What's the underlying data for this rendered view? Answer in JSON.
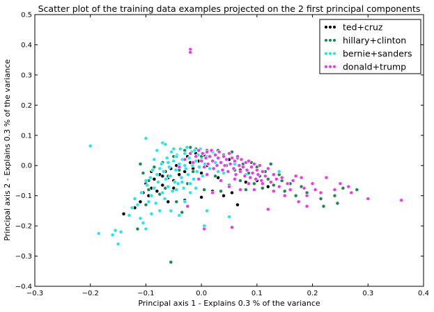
{
  "chart_data": {
    "type": "scatter",
    "title": "Scatter plot of the training data examples projected on the 2 first principal components",
    "xlabel": "Principal axis 1 - Explains 0.3 % of the variance",
    "ylabel": "Principal axis 2 - Explains 0.3 % of the variance",
    "xlim": [
      -0.3,
      0.4
    ],
    "ylim": [
      -0.4,
      0.5
    ],
    "xticks": [
      "−0.3",
      "−0.2",
      "−0.1",
      "0.0",
      "0.1",
      "0.2",
      "0.3",
      "0.4"
    ],
    "yticks": [
      "−0.4",
      "−0.3",
      "−0.2",
      "−0.1",
      "0.0",
      "0.1",
      "0.2",
      "0.3",
      "0.4",
      "0.5"
    ],
    "xtick_values": [
      -0.3,
      -0.2,
      -0.1,
      0.0,
      0.1,
      0.2,
      0.3,
      0.4
    ],
    "ytick_values": [
      -0.4,
      -0.3,
      -0.2,
      -0.1,
      0.0,
      0.1,
      0.2,
      0.3,
      0.4,
      0.5
    ],
    "legend_position": "top-right",
    "series": [
      {
        "name": "ted+cruz",
        "color": "#000000",
        "points": [
          [
            -0.14,
            -0.16
          ],
          [
            -0.13,
            -0.165
          ],
          [
            -0.12,
            -0.14
          ],
          [
            -0.11,
            -0.12
          ],
          [
            -0.105,
            -0.09
          ],
          [
            -0.1,
            -0.06
          ],
          [
            -0.095,
            -0.1
          ],
          [
            -0.09,
            -0.075
          ],
          [
            -0.085,
            -0.045
          ],
          [
            -0.08,
            -0.085
          ],
          [
            -0.075,
            -0.03
          ],
          [
            -0.07,
            -0.065
          ],
          [
            -0.065,
            -0.02
          ],
          [
            -0.06,
            -0.04
          ],
          [
            -0.055,
            -0.01
          ],
          [
            -0.05,
            -0.05
          ],
          [
            -0.045,
            0.0
          ],
          [
            -0.04,
            -0.03
          ],
          [
            -0.035,
            0.02
          ],
          [
            -0.03,
            -0.02
          ],
          [
            -0.025,
            0.03
          ],
          [
            -0.02,
            0.01
          ],
          [
            -0.015,
            -0.01
          ],
          [
            -0.01,
            0.04
          ],
          [
            -0.005,
            0.015
          ],
          [
            0.0,
            -0.025
          ],
          [
            0.005,
            0.035
          ],
          [
            0.01,
            0.0
          ],
          [
            0.02,
            0.045
          ],
          [
            0.03,
            -0.04
          ],
          [
            0.04,
            -0.1
          ],
          [
            0.055,
            -0.09
          ],
          [
            0.065,
            -0.13
          ],
          [
            0.08,
            -0.055
          ],
          [
            0.1,
            -0.05
          ],
          [
            0.12,
            -0.07
          ],
          [
            -0.06,
            -0.12
          ],
          [
            -0.03,
            -0.115
          ],
          [
            0.0,
            -0.105
          ],
          [
            0.02,
            -0.085
          ],
          [
            -0.09,
            -0.02
          ],
          [
            -0.07,
            -0.035
          ],
          [
            -0.05,
            -0.075
          ],
          [
            0.05,
            0.02
          ],
          [
            0.07,
            -0.015
          ]
        ]
      },
      {
        "name": "hillary+clinton",
        "color": "#1b8a4f",
        "points": [
          [
            -0.115,
            -0.21
          ],
          [
            -0.11,
            0.005
          ],
          [
            -0.105,
            -0.025
          ],
          [
            -0.1,
            -0.13
          ],
          [
            -0.095,
            -0.08
          ],
          [
            -0.085,
            -0.005
          ],
          [
            -0.075,
            -0.095
          ],
          [
            -0.07,
            0.01
          ],
          [
            -0.06,
            -0.035
          ],
          [
            -0.055,
            -0.32
          ],
          [
            -0.05,
            0.03
          ],
          [
            -0.045,
            -0.12
          ],
          [
            -0.04,
            -0.015
          ],
          [
            -0.035,
            -0.155
          ],
          [
            -0.03,
            0.05
          ],
          [
            -0.025,
            -0.06
          ],
          [
            -0.02,
            0.06
          ],
          [
            -0.015,
            -0.02
          ],
          [
            -0.01,
            0.055
          ],
          [
            0.0,
            0.03
          ],
          [
            0.005,
            -0.08
          ],
          [
            0.01,
            0.05
          ],
          [
            0.02,
            0.015
          ],
          [
            0.025,
            -0.035
          ],
          [
            0.03,
            0.05
          ],
          [
            0.035,
            -0.085
          ],
          [
            0.04,
            0.035
          ],
          [
            0.045,
            0.0
          ],
          [
            0.05,
            -0.065
          ],
          [
            0.055,
            0.045
          ],
          [
            0.06,
            -0.015
          ],
          [
            0.065,
            0.025
          ],
          [
            0.07,
            -0.05
          ],
          [
            0.075,
            0.005
          ],
          [
            0.08,
            -0.08
          ],
          [
            0.085,
            -0.025
          ],
          [
            0.09,
            0.01
          ],
          [
            0.095,
            -0.06
          ],
          [
            0.1,
            -0.005
          ],
          [
            0.105,
            -0.035
          ],
          [
            0.11,
            -0.075
          ],
          [
            0.115,
            -0.02
          ],
          [
            0.12,
            -0.045
          ],
          [
            0.125,
            0.005
          ],
          [
            0.13,
            -0.065
          ],
          [
            0.14,
            -0.03
          ],
          [
            0.145,
            -0.05
          ],
          [
            0.15,
            -0.085
          ],
          [
            0.16,
            -0.06
          ],
          [
            0.17,
            -0.1
          ],
          [
            0.18,
            -0.07
          ],
          [
            0.19,
            -0.09
          ],
          [
            0.215,
            -0.11
          ],
          [
            0.22,
            -0.135
          ],
          [
            0.24,
            -0.1
          ],
          [
            0.245,
            -0.125
          ],
          [
            0.255,
            -0.075
          ],
          [
            0.28,
            -0.08
          ],
          [
            -0.095,
            -0.05
          ],
          [
            -0.065,
            -0.075
          ]
        ]
      },
      {
        "name": "bernie+sanders",
        "color": "#22e5f0",
        "points": [
          [
            -0.2,
            0.065
          ],
          [
            -0.185,
            -0.225
          ],
          [
            -0.16,
            -0.23
          ],
          [
            -0.155,
            -0.215
          ],
          [
            -0.15,
            -0.26
          ],
          [
            -0.145,
            -0.22
          ],
          [
            -0.13,
            -0.165
          ],
          [
            -0.125,
            -0.14
          ],
          [
            -0.12,
            -0.11
          ],
          [
            -0.115,
            -0.13
          ],
          [
            -0.11,
            -0.175
          ],
          [
            -0.108,
            -0.09
          ],
          [
            -0.105,
            -0.19
          ],
          [
            -0.1,
            -0.21
          ],
          [
            -0.1,
            0.09
          ],
          [
            -0.098,
            -0.065
          ],
          [
            -0.095,
            -0.12
          ],
          [
            -0.092,
            -0.04
          ],
          [
            -0.09,
            -0.1
          ],
          [
            -0.088,
            -0.015
          ],
          [
            -0.085,
            -0.075
          ],
          [
            -0.082,
            -0.125
          ],
          [
            -0.08,
            -0.03
          ],
          [
            -0.078,
            -0.055
          ],
          [
            -0.075,
            -0.15
          ],
          [
            -0.072,
            0.005
          ],
          [
            -0.07,
            -0.09
          ],
          [
            -0.068,
            -0.02
          ],
          [
            -0.066,
            -0.11
          ],
          [
            -0.064,
            -0.045
          ],
          [
            -0.062,
            0.025
          ],
          [
            -0.06,
            -0.07
          ],
          [
            -0.058,
            -0.005
          ],
          [
            -0.056,
            -0.035
          ],
          [
            -0.054,
            0.045
          ],
          [
            -0.052,
            -0.085
          ],
          [
            -0.05,
            0.015
          ],
          [
            -0.048,
            -0.055
          ],
          [
            -0.046,
            -0.015
          ],
          [
            -0.044,
            0.035
          ],
          [
            -0.042,
            -0.06
          ],
          [
            -0.04,
            0.005
          ],
          [
            -0.038,
            0.055
          ],
          [
            -0.036,
            -0.04
          ],
          [
            -0.034,
            0.02
          ],
          [
            -0.032,
            -0.075
          ],
          [
            -0.03,
            0.04
          ],
          [
            -0.028,
            -0.01
          ],
          [
            -0.026,
            0.06
          ],
          [
            -0.024,
            -0.03
          ],
          [
            -0.022,
            0.025
          ],
          [
            -0.02,
            -0.06
          ],
          [
            -0.018,
            0.045
          ],
          [
            -0.016,
            0.0
          ],
          [
            -0.014,
            -0.045
          ],
          [
            -0.012,
            0.05
          ],
          [
            -0.01,
            0.015
          ],
          [
            -0.008,
            -0.02
          ],
          [
            -0.006,
            0.035
          ],
          [
            -0.004,
            -0.005
          ],
          [
            -0.002,
            0.055
          ],
          [
            0.0,
            0.02
          ],
          [
            0.002,
            -0.035
          ],
          [
            0.004,
            0.04
          ],
          [
            0.006,
            0.005
          ],
          [
            0.01,
            0.03
          ],
          [
            0.015,
            -0.01
          ],
          [
            0.02,
            0.045
          ],
          [
            0.025,
            0.01
          ],
          [
            0.03,
            -0.02
          ],
          [
            -0.07,
            0.075
          ],
          [
            -0.055,
            -0.15
          ],
          [
            -0.04,
            -0.165
          ],
          [
            -0.03,
            -0.12
          ],
          [
            -0.02,
            -0.09
          ],
          [
            -0.01,
            -0.075
          ],
          [
            0.01,
            -0.15
          ],
          [
            0.05,
            -0.17
          ],
          [
            0.005,
            -0.2
          ],
          [
            -0.065,
            0.07
          ],
          [
            -0.08,
            0.05
          ],
          [
            -0.05,
            0.055
          ],
          [
            -0.045,
            -0.08
          ],
          [
            -0.035,
            -0.055
          ],
          [
            -0.09,
            -0.16
          ],
          [
            0.14,
            -0.02
          ],
          [
            0.08,
            -0.03
          ],
          [
            0.06,
            0.005
          ],
          [
            0.04,
            -0.025
          ],
          [
            -0.1,
            -0.05
          ],
          [
            -0.085,
            0.02
          ],
          [
            -0.075,
            -0.01
          ],
          [
            -0.06,
            0.01
          ],
          [
            -0.045,
            0.03
          ],
          [
            -0.03,
            0.0
          ]
        ]
      },
      {
        "name": "donald+trump",
        "color": "#ea3ce6",
        "points": [
          [
            -0.02,
            0.385
          ],
          [
            -0.02,
            0.375
          ],
          [
            -0.04,
            -0.005
          ],
          [
            -0.03,
            0.02
          ],
          [
            -0.02,
            0.04
          ],
          [
            -0.015,
            0.01
          ],
          [
            -0.01,
            0.03
          ],
          [
            -0.005,
            0.05
          ],
          [
            0.0,
            0.015
          ],
          [
            0.002,
            0.04
          ],
          [
            0.005,
            -0.005
          ],
          [
            0.008,
            0.025
          ],
          [
            0.01,
            0.045
          ],
          [
            0.012,
            0.005
          ],
          [
            0.015,
            0.03
          ],
          [
            0.018,
            0.05
          ],
          [
            0.02,
            0.015
          ],
          [
            0.022,
            -0.01
          ],
          [
            0.025,
            0.035
          ],
          [
            0.028,
            0.0
          ],
          [
            0.03,
            0.025
          ],
          [
            0.032,
            0.045
          ],
          [
            0.035,
            0.01
          ],
          [
            0.038,
            -0.015
          ],
          [
            0.04,
            0.03
          ],
          [
            0.042,
            0.0
          ],
          [
            0.045,
            0.02
          ],
          [
            0.048,
            -0.02
          ],
          [
            0.05,
            0.04
          ],
          [
            0.052,
            0.005
          ],
          [
            0.055,
            0.025
          ],
          [
            0.058,
            -0.01
          ],
          [
            0.06,
            0.015
          ],
          [
            0.062,
            -0.03
          ],
          [
            0.065,
            0.03
          ],
          [
            0.068,
            0.0
          ],
          [
            0.07,
            -0.02
          ],
          [
            0.072,
            0.02
          ],
          [
            0.075,
            -0.005
          ],
          [
            0.078,
            -0.035
          ],
          [
            0.08,
            0.01
          ],
          [
            0.082,
            -0.015
          ],
          [
            0.085,
            0.015
          ],
          [
            0.088,
            -0.04
          ],
          [
            0.09,
            -0.005
          ],
          [
            0.092,
            -0.025
          ],
          [
            0.095,
            0.005
          ],
          [
            0.098,
            -0.045
          ],
          [
            0.1,
            -0.015
          ],
          [
            0.102,
            -0.03
          ],
          [
            0.105,
            0.0
          ],
          [
            0.108,
            -0.05
          ],
          [
            0.11,
            -0.02
          ],
          [
            0.115,
            -0.035
          ],
          [
            0.12,
            -0.01
          ],
          [
            0.125,
            -0.055
          ],
          [
            0.13,
            -0.03
          ],
          [
            0.135,
            -0.045
          ],
          [
            0.14,
            -0.07
          ],
          [
            0.145,
            -0.04
          ],
          [
            0.15,
            -0.1
          ],
          [
            0.155,
            -0.06
          ],
          [
            0.16,
            -0.08
          ],
          [
            0.165,
            -0.05
          ],
          [
            0.17,
            -0.035
          ],
          [
            0.175,
            -0.12
          ],
          [
            0.18,
            -0.04
          ],
          [
            0.185,
            -0.075
          ],
          [
            0.19,
            -0.1
          ],
          [
            0.2,
            -0.06
          ],
          [
            0.205,
            -0.08
          ],
          [
            0.215,
            -0.09
          ],
          [
            0.225,
            -0.04
          ],
          [
            0.24,
            -0.08
          ],
          [
            0.25,
            -0.06
          ],
          [
            0.265,
            -0.07
          ],
          [
            0.27,
            -0.09
          ],
          [
            0.3,
            -0.11
          ],
          [
            0.36,
            -0.115
          ],
          [
            0.19,
            -0.135
          ],
          [
            0.12,
            -0.145
          ],
          [
            0.07,
            -0.08
          ],
          [
            0.055,
            -0.205
          ],
          [
            0.005,
            -0.21
          ],
          [
            0.02,
            -0.09
          ],
          [
            -0.005,
            -0.045
          ],
          [
            0.01,
            -0.03
          ],
          [
            0.035,
            -0.05
          ],
          [
            -0.025,
            -0.135
          ],
          [
            0.085,
            -0.06
          ],
          [
            0.095,
            -0.08
          ],
          [
            0.11,
            -0.06
          ],
          [
            0.13,
            -0.085
          ],
          [
            0.05,
            -0.07
          ],
          [
            0.06,
            -0.045
          ]
        ]
      }
    ]
  }
}
